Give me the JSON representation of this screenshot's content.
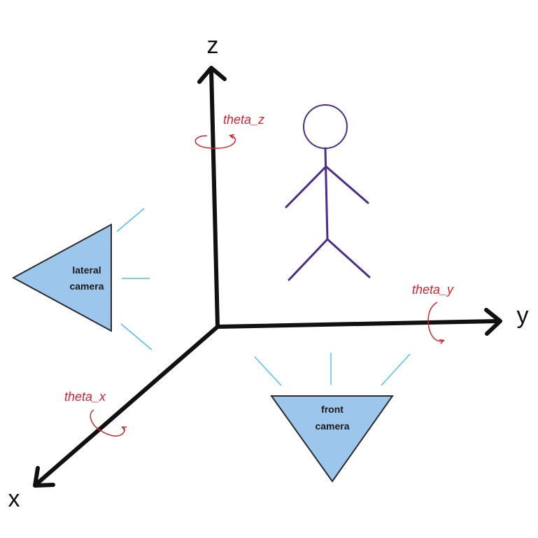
{
  "axes": {
    "x_label": "x",
    "y_label": "y",
    "z_label": "z"
  },
  "rotations": {
    "theta_x": "theta_x",
    "theta_y": "theta_y",
    "theta_z": "theta_z"
  },
  "cameras": {
    "lateral": {
      "line1": "lateral",
      "line2": "camera"
    },
    "front": {
      "line1": "front",
      "line2": "camera"
    }
  },
  "colors": {
    "axis": "#111111",
    "figure": "#4b2c8a",
    "rotation": "#d9232e",
    "camera_fill": "#9dc6ec",
    "camera_stroke": "#2b2b2b",
    "rays": "#4fc3ef"
  },
  "icons": {
    "figure": "stick-figure-icon",
    "lateral_camera": "triangle-camera-icon",
    "front_camera": "triangle-camera-icon"
  }
}
